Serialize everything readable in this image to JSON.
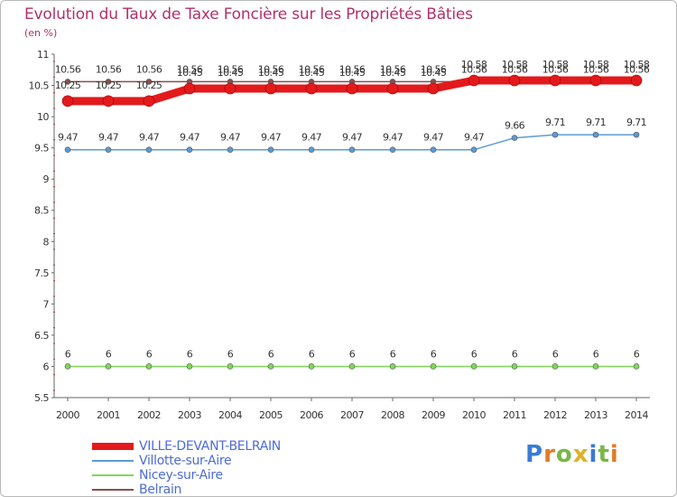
{
  "title": "Evolution du Taux de Taxe Foncière sur les Propriétés Bâties",
  "unit_label": "(en %)",
  "logo_text": "Proxiti",
  "colors": {
    "title": "#b3306b",
    "axis": "#666666",
    "grid": "#dddddd",
    "legend_text": "#4d6bd6"
  },
  "chart_data": {
    "type": "line",
    "title": "Evolution du Taux de Taxe Foncière sur les Propriétés Bâties",
    "ylabel": "(en %)",
    "xlabel": "",
    "x": [
      "2000",
      "2001",
      "2002",
      "2003",
      "2004",
      "2005",
      "2006",
      "2007",
      "2008",
      "2009",
      "2010",
      "2011",
      "2012",
      "2013",
      "2014"
    ],
    "y_ticks": [
      "5.5",
      "6",
      "6.5",
      "7",
      "7.5",
      "8",
      "8.5",
      "9",
      "9.5",
      "10",
      "10.5",
      "11"
    ],
    "ylim": [
      5.5,
      11
    ],
    "grid": false,
    "legend_position": "bottom-left",
    "series": [
      {
        "name": "VILLE-DEVANT-BELRAIN",
        "color": "#e31a1c",
        "values": [
          10.25,
          10.25,
          10.25,
          10.45,
          10.45,
          10.45,
          10.45,
          10.45,
          10.45,
          10.45,
          10.58,
          10.58,
          10.58,
          10.58,
          10.58
        ],
        "labels": [
          "10.25",
          "10.25",
          "10.25",
          "10.45",
          "10.45",
          "10.45",
          "10.45",
          "10.45",
          "10.45",
          "10.45",
          "10.58",
          "10.58",
          "10.58",
          "10.58",
          "10.58"
        ]
      },
      {
        "name": "Villotte-sur-Aire",
        "color": "#5b9bd5",
        "values": [
          9.47,
          9.47,
          9.47,
          9.47,
          9.47,
          9.47,
          9.47,
          9.47,
          9.47,
          9.47,
          9.47,
          9.66,
          9.71,
          9.71,
          9.71
        ],
        "labels": [
          "9.47",
          "9.47",
          "9.47",
          "9.47",
          "9.47",
          "9.47",
          "9.47",
          "9.47",
          "9.47",
          "9.47",
          "9.47",
          "9.66",
          "9.71",
          "9.71",
          "9.71"
        ]
      },
      {
        "name": "Nicey-sur-Aire",
        "color": "#7ed957",
        "values": [
          6,
          6,
          6,
          6,
          6,
          6,
          6,
          6,
          6,
          6,
          6,
          6,
          6,
          6,
          6
        ],
        "labels": [
          "6",
          "6",
          "6",
          "6",
          "6",
          "6",
          "6",
          "6",
          "6",
          "6",
          "6",
          "6",
          "6",
          "6",
          "6"
        ]
      },
      {
        "name": "Belrain",
        "color": "#8a4f4f",
        "values": [
          10.56,
          10.56,
          10.56,
          10.56,
          10.56,
          10.56,
          10.56,
          10.56,
          10.56,
          10.56,
          10.56,
          10.56,
          10.56,
          10.56,
          10.56
        ],
        "labels": [
          "10.56",
          "10.56",
          "10.56",
          "10.56",
          "10.56",
          "10.56",
          "10.56",
          "10.56",
          "10.56",
          "10.56",
          "10.56",
          "10.56",
          "10.56",
          "10.56",
          "10.56"
        ]
      }
    ]
  }
}
